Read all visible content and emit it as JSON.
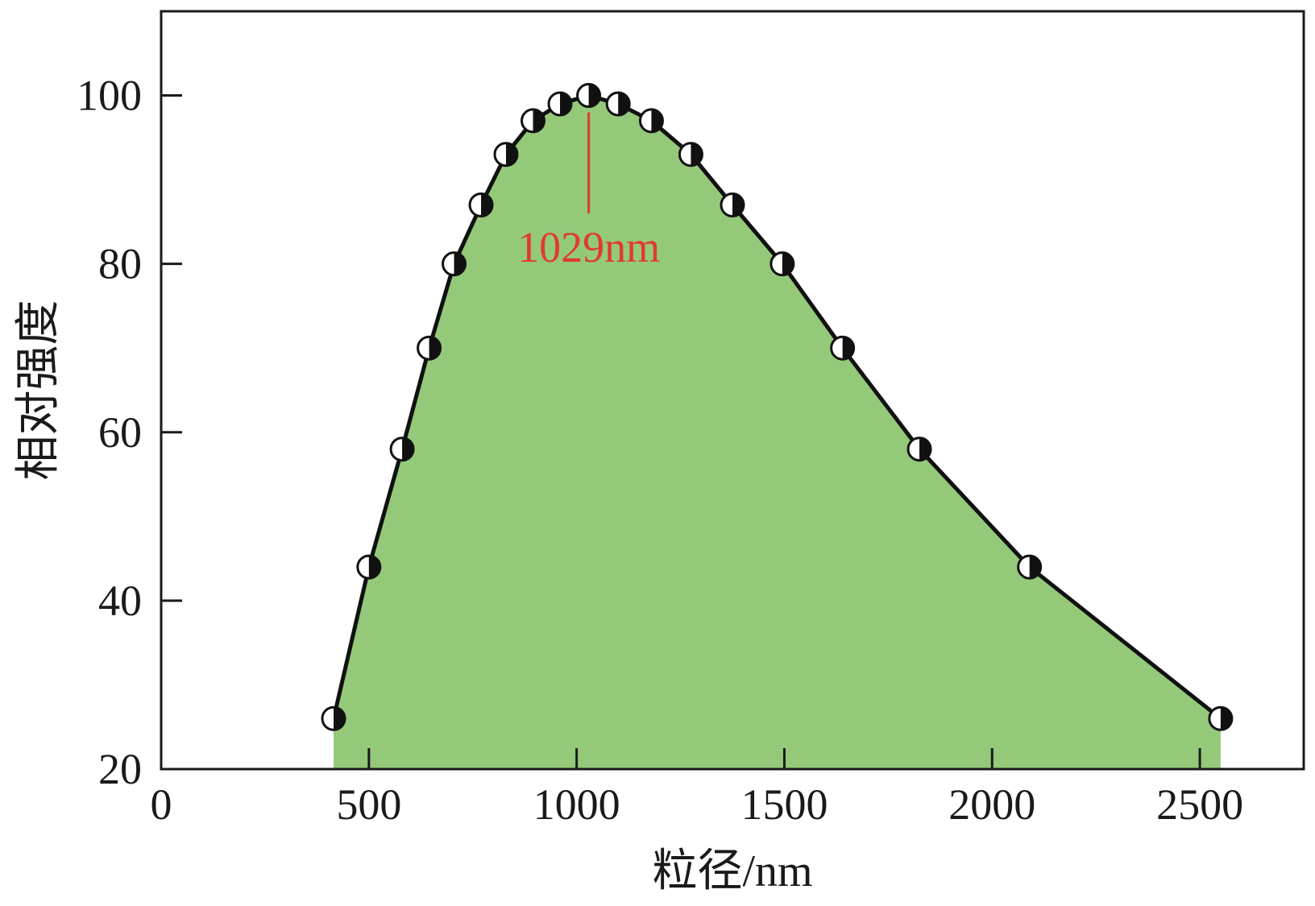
{
  "chart_data": {
    "type": "area",
    "title": "",
    "xlabel": "粒径/nm",
    "ylabel": "相对强度",
    "xlim": [
      0,
      2750
    ],
    "ylim": [
      20,
      110
    ],
    "x_ticks": [
      0,
      500,
      1000,
      1500,
      2000,
      2500
    ],
    "y_ticks": [
      20,
      40,
      60,
      80,
      100
    ],
    "grid": false,
    "legend": "none",
    "series": [
      {
        "x": [
          415,
          500,
          580,
          645,
          705,
          770,
          830,
          895,
          960,
          1029,
          1100,
          1180,
          1275,
          1375,
          1495,
          1640,
          1825,
          2090,
          2550
        ],
        "y": [
          26,
          44,
          58,
          70,
          80,
          87,
          93,
          97,
          99,
          100,
          99,
          97,
          93,
          87,
          80,
          70,
          58,
          44,
          26
        ]
      }
    ],
    "annotations": [
      {
        "text": "1029nm",
        "x": 1029,
        "y_from": 98,
        "y_to": 86
      }
    ],
    "colors": {
      "fill": "#95c97a",
      "line": "#111111",
      "annotation": "#e03a2f",
      "axis": "#1a1a1a"
    }
  }
}
